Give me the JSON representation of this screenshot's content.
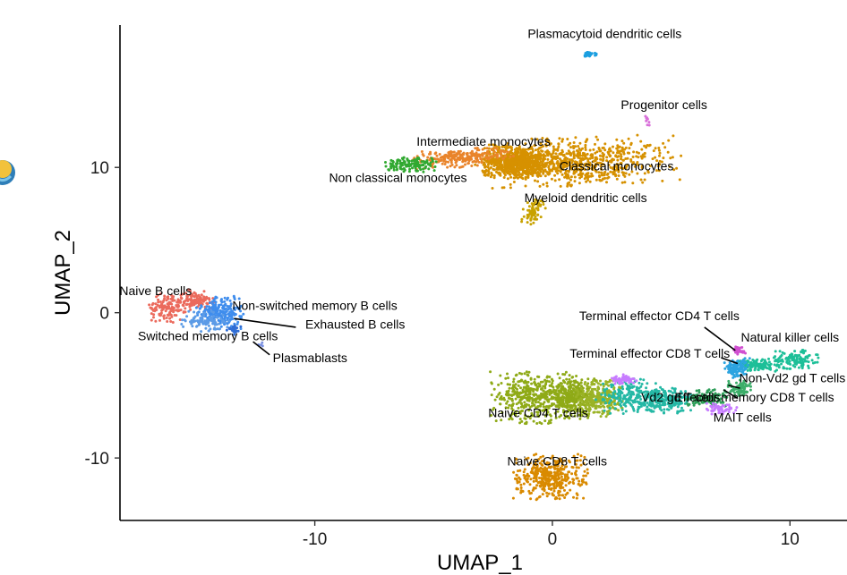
{
  "chart_data": {
    "type": "scatter",
    "xlabel": "UMAP_1",
    "ylabel": "UMAP_2",
    "xlim": [
      -18.2,
      12.4
    ],
    "ylim": [
      -14.3,
      19.8
    ],
    "x_ticks": [
      {
        "value": -10,
        "label": "-10"
      },
      {
        "value": 0,
        "label": "0"
      },
      {
        "value": 10,
        "label": "10"
      }
    ],
    "y_ticks": [
      {
        "value": -10,
        "label": "-10"
      },
      {
        "value": 0,
        "label": "0"
      },
      {
        "value": 10,
        "label": "10"
      }
    ],
    "grid": false,
    "legend": "none",
    "clusters": [
      {
        "id": "classical-monocytes",
        "color": "#D69100",
        "n": 1400,
        "parts": [
          {
            "cx": 1.1,
            "cy": 10.4,
            "rx": 3.8,
            "ry": 1.5,
            "rot": 4
          },
          {
            "cx": -1.5,
            "cy": 10.4,
            "rx": 1.3,
            "ry": 1.0,
            "rot": 0
          }
        ]
      },
      {
        "id": "intermediate-monocytes",
        "color": "#E9842B",
        "n": 250,
        "parts": [
          {
            "cx": -3.8,
            "cy": 10.7,
            "rx": 1.9,
            "ry": 0.6,
            "rot": 8
          }
        ]
      },
      {
        "id": "non-classical-monocytes",
        "color": "#31A931",
        "n": 130,
        "parts": [
          {
            "cx": -6.0,
            "cy": 10.2,
            "rx": 1.0,
            "ry": 0.45,
            "rot": 0
          }
        ]
      },
      {
        "id": "myeloid-dendritic-cells",
        "color": "#C8A200",
        "n": 80,
        "parts": [
          {
            "cx": -0.8,
            "cy": 7.0,
            "rx": 0.4,
            "ry": 0.9,
            "rot": -20
          }
        ]
      },
      {
        "id": "plasmacytoid-dendritic-cells",
        "color": "#1C9FE0",
        "n": 25,
        "parts": [
          {
            "cx": 1.5,
            "cy": 17.8,
            "rx": 0.35,
            "ry": 0.2,
            "rot": 0
          }
        ]
      },
      {
        "id": "progenitor-cells",
        "color": "#D86FD9",
        "n": 8,
        "parts": [
          {
            "cx": 4.0,
            "cy": 13.2,
            "rx": 0.1,
            "ry": 0.35,
            "rot": 0
          }
        ]
      },
      {
        "id": "naive-b-cells",
        "color": "#EB6A5C",
        "n": 260,
        "parts": [
          {
            "cx": -16.2,
            "cy": 0.3,
            "rx": 0.7,
            "ry": 0.9,
            "rot": 0
          },
          {
            "cx": -15.0,
            "cy": 0.8,
            "rx": 0.7,
            "ry": 0.7,
            "rot": 0
          }
        ]
      },
      {
        "id": "non-switched-memory-b-cells",
        "color": "#3F8DED",
        "n": 220,
        "parts": [
          {
            "cx": -14.0,
            "cy": 0.0,
            "rx": 0.9,
            "ry": 1.0,
            "rot": 0
          }
        ]
      },
      {
        "id": "switched-memory-b-cells",
        "color": "#5C9BE6",
        "n": 90,
        "parts": [
          {
            "cx": -14.6,
            "cy": -0.6,
            "rx": 0.9,
            "ry": 0.6,
            "rot": 0
          }
        ]
      },
      {
        "id": "exhausted-b-cells",
        "color": "#2F6CD4",
        "n": 25,
        "parts": [
          {
            "cx": -13.4,
            "cy": -1.2,
            "rx": 0.3,
            "ry": 0.3,
            "rot": 0
          }
        ]
      },
      {
        "id": "plasmablasts",
        "color": "#7A90E0",
        "n": 4,
        "parts": [
          {
            "cx": -12.2,
            "cy": -2.2,
            "rx": 0.3,
            "ry": 0.2,
            "rot": 0
          }
        ]
      },
      {
        "id": "naive-cd8-t-cells",
        "color": "#D98A00",
        "n": 420,
        "parts": [
          {
            "cx": -0.1,
            "cy": -11.3,
            "rx": 1.4,
            "ry": 1.4,
            "rot": 0
          }
        ]
      },
      {
        "id": "naive-cd4-t-cells",
        "color": "#8FAA17",
        "n": 750,
        "parts": [
          {
            "cx": -0.9,
            "cy": -5.8,
            "rx": 1.5,
            "ry": 1.6,
            "rot": 0
          },
          {
            "cx": 0.8,
            "cy": -5.8,
            "rx": 1.0,
            "ry": 1.4,
            "rot": 0
          }
        ]
      },
      {
        "id": "naive-cd4-t-cells-b",
        "color": "#9BB326",
        "n": 250,
        "parts": [
          {
            "cx": 2.0,
            "cy": -5.9,
            "rx": 0.9,
            "ry": 1.1,
            "rot": 0
          }
        ]
      },
      {
        "id": "effector-memory-cd8-t-cells",
        "color": "#24B8A5",
        "n": 420,
        "parts": [
          {
            "cx": 3.3,
            "cy": -5.7,
            "rx": 1.3,
            "ry": 1.1,
            "rot": 0
          },
          {
            "cx": 4.8,
            "cy": -6.0,
            "rx": 1.1,
            "ry": 0.8,
            "rot": 0
          }
        ]
      },
      {
        "id": "vd2-gd-t-cells",
        "color": "#2E9E59",
        "n": 120,
        "parts": [
          {
            "cx": 6.5,
            "cy": -5.9,
            "rx": 0.8,
            "ry": 0.55,
            "rot": 0
          }
        ]
      },
      {
        "id": "natural-killer-cells",
        "color": "#1DBF98",
        "n": 260,
        "parts": [
          {
            "cx": 10.2,
            "cy": -3.2,
            "rx": 0.9,
            "ry": 0.6,
            "rot": 0
          },
          {
            "cx": 8.6,
            "cy": -3.6,
            "rx": 0.9,
            "ry": 0.4,
            "rot": 0
          }
        ]
      },
      {
        "id": "terminal-effector-cd8-t-cells",
        "color": "#2CA4E0",
        "n": 110,
        "parts": [
          {
            "cx": 7.8,
            "cy": -3.8,
            "rx": 0.5,
            "ry": 0.6,
            "rot": 0
          }
        ]
      },
      {
        "id": "terminal-effector-cd4-t-cells",
        "color": "#D04FD0",
        "n": 30,
        "parts": [
          {
            "cx": 7.8,
            "cy": -2.6,
            "rx": 0.3,
            "ry": 0.25,
            "rot": 0
          }
        ]
      },
      {
        "id": "non-vd2-gd-t-cells",
        "color": "#3DAE6A",
        "n": 90,
        "parts": [
          {
            "cx": 7.9,
            "cy": -5.2,
            "rx": 0.6,
            "ry": 0.5,
            "rot": 0
          }
        ]
      },
      {
        "id": "mait-cells",
        "color": "#C77CFF",
        "n": 110,
        "parts": [
          {
            "cx": 7.0,
            "cy": -6.6,
            "rx": 0.7,
            "ry": 0.4,
            "rot": 0
          },
          {
            "cx": 3.0,
            "cy": -4.6,
            "rx": 0.5,
            "ry": 0.3,
            "rot": 0
          }
        ]
      }
    ],
    "labels": [
      {
        "text": "Plasmacytoid dendritic cells",
        "x": 2.2,
        "y": 18.9
      },
      {
        "text": "Progenitor cells",
        "x": 4.7,
        "y": 14.0
      },
      {
        "text": "Intermediate monocytes",
        "x": -2.9,
        "y": 11.5
      },
      {
        "text": "Classical monocytes",
        "x": 2.7,
        "y": 9.8
      },
      {
        "text": "Non classical monocytes",
        "x": -6.5,
        "y": 9.0
      },
      {
        "text": "Myeloid dendritic cells",
        "x": 1.4,
        "y": 7.6
      },
      {
        "text": "Naive B cells",
        "x": -16.7,
        "y": 1.2
      },
      {
        "text": "Non-switched memory B cells",
        "x": -10.0,
        "y": 0.2
      },
      {
        "text": "Exhausted B cells",
        "x": -8.3,
        "y": -1.1
      },
      {
        "text": "Switched memory B cells",
        "x": -14.5,
        "y": -1.9
      },
      {
        "text": "Plasmablasts",
        "x": -10.2,
        "y": -3.4
      },
      {
        "text": "Terminal effector CD4 T cells",
        "x": 4.5,
        "y": -0.5
      },
      {
        "text": "Natural killer cells",
        "x": 10.0,
        "y": -2.0
      },
      {
        "text": "Terminal effector CD8 T cells",
        "x": 4.1,
        "y": -3.1
      },
      {
        "text": "Non-Vd2 gd T cells",
        "x": 10.1,
        "y": -4.8
      },
      {
        "text": "Vd2 gd T cells",
        "x": 5.4,
        "y": -6.1
      },
      {
        "text": "Effector memory CD8 T cells",
        "x": 8.5,
        "y": -6.1
      },
      {
        "text": "MAIT cells",
        "x": 8.0,
        "y": -7.5
      },
      {
        "text": "Naive CD4 T cells",
        "x": -0.6,
        "y": -7.2
      },
      {
        "text": "Naive CD8 T cells",
        "x": 0.2,
        "y": -10.5
      }
    ],
    "leaders": [
      {
        "label": "Non-switched memory B cells",
        "from": [
          -13.4,
          -0.4
        ],
        "to": [
          -10.8,
          -1.0
        ]
      },
      {
        "label": "Plasmablasts",
        "from": [
          -12.6,
          -2.0
        ],
        "to": [
          -11.9,
          -2.9
        ]
      },
      {
        "label": "Terminal effector CD4 T cells",
        "from": [
          6.4,
          -1.0
        ],
        "to": [
          7.7,
          -2.6
        ]
      },
      {
        "label": "Terminal effector CD8 T cells",
        "from": [
          7.1,
          -3.1
        ],
        "to": [
          7.8,
          -3.5
        ]
      },
      {
        "label": "Non-Vd2 gd T cells",
        "from": [
          7.4,
          -5.0
        ],
        "to": [
          7.9,
          -5.2
        ]
      },
      {
        "label": "Effector memory CD8 T cells",
        "from": [
          7.2,
          -5.3
        ],
        "to": [
          7.8,
          -5.9
        ]
      }
    ]
  }
}
